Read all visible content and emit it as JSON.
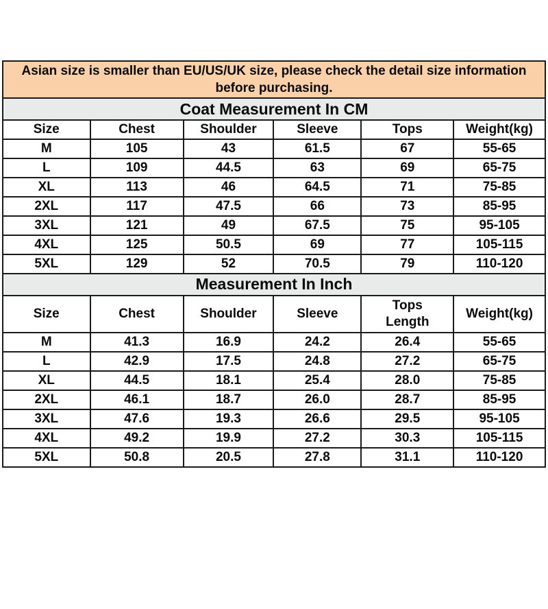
{
  "notice": {
    "text": "Asian size is smaller than EU/US/UK size, please check the detail size information before purchasing."
  },
  "cm_table": {
    "title": "Coat Measurement In CM",
    "headers": [
      "Size",
      "Chest",
      "Shoulder",
      "Sleeve",
      "Tops",
      "Weight(kg)"
    ],
    "rows": [
      [
        "M",
        "105",
        "43",
        "61.5",
        "67",
        "55-65"
      ],
      [
        "L",
        "109",
        "44.5",
        "63",
        "69",
        "65-75"
      ],
      [
        "XL",
        "113",
        "46",
        "64.5",
        "71",
        "75-85"
      ],
      [
        "2XL",
        "117",
        "47.5",
        "66",
        "73",
        "85-95"
      ],
      [
        "3XL",
        "121",
        "49",
        "67.5",
        "75",
        "95-105"
      ],
      [
        "4XL",
        "125",
        "50.5",
        "69",
        "77",
        "105-115"
      ],
      [
        "5XL",
        "129",
        "52",
        "70.5",
        "79",
        "110-120"
      ]
    ]
  },
  "inch_table": {
    "title": "Measurement In Inch",
    "headers": [
      "Size",
      "Chest",
      "Shoulder",
      "Sleeve",
      "Tops\nLength",
      "Weight(kg)"
    ],
    "rows": [
      [
        "M",
        "41.3",
        "16.9",
        "24.2",
        "26.4",
        "55-65"
      ],
      [
        "L",
        "42.9",
        "17.5",
        "24.8",
        "27.2",
        "65-75"
      ],
      [
        "XL",
        "44.5",
        "18.1",
        "25.4",
        "28.0",
        "75-85"
      ],
      [
        "2XL",
        "46.1",
        "18.7",
        "26.0",
        "28.7",
        "85-95"
      ],
      [
        "3XL",
        "47.6",
        "19.3",
        "26.6",
        "29.5",
        "95-105"
      ],
      [
        "4XL",
        "49.2",
        "19.9",
        "27.2",
        "30.3",
        "105-115"
      ],
      [
        "5XL",
        "50.8",
        "20.5",
        "27.8",
        "31.1",
        "110-120"
      ]
    ]
  },
  "colors": {
    "notice_bg": "#FAD0A9",
    "section_bg": "#E9EAEA",
    "border": "#1b1b1b",
    "text": "#0a0a0a"
  }
}
